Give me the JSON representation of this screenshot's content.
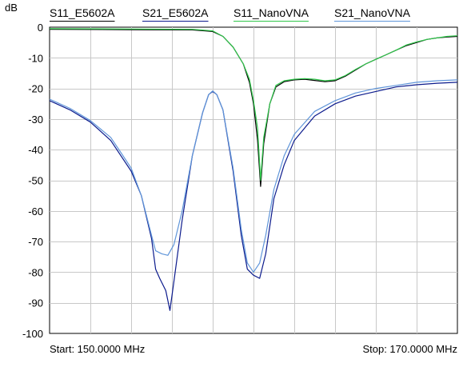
{
  "chart_data": {
    "type": "line",
    "ylabel": "dB",
    "xlabel": "",
    "title": "",
    "xlim": [
      150.0,
      170.0
    ],
    "ylim": [
      -100,
      0
    ],
    "x_start_label": "Start: 150.0000 MHz",
    "x_stop_label": "Stop: 170.0000 MHz",
    "yticks": [
      0,
      -10,
      -20,
      -30,
      -40,
      -50,
      -60,
      -70,
      -80,
      -90,
      -100
    ],
    "ytick_labels": [
      "0",
      "-10",
      "-20",
      "-30",
      "-40",
      "-50",
      "-60",
      "-70",
      "-80",
      "-90",
      "-100"
    ],
    "x_gridlines": [
      150,
      152,
      154,
      156,
      158,
      160,
      162,
      164,
      166,
      168,
      170
    ],
    "grid": true,
    "legend_position": "top",
    "series": [
      {
        "name": "S11_E5602A",
        "color": "#000000",
        "points": [
          [
            150.0,
            -0.7
          ],
          [
            154.0,
            -0.8
          ],
          [
            157.0,
            -0.9
          ],
          [
            158.0,
            -1.4
          ],
          [
            158.5,
            -3.0
          ],
          [
            159.0,
            -6.5
          ],
          [
            159.5,
            -12.0
          ],
          [
            159.8,
            -18.0
          ],
          [
            160.0,
            -25.0
          ],
          [
            160.2,
            -37.0
          ],
          [
            160.35,
            -52.0
          ],
          [
            160.5,
            -38.0
          ],
          [
            160.8,
            -25.0
          ],
          [
            161.1,
            -19.5
          ],
          [
            161.5,
            -17.8
          ],
          [
            162.0,
            -17.2
          ],
          [
            162.5,
            -17.0
          ],
          [
            163.0,
            -17.4
          ],
          [
            163.5,
            -17.8
          ],
          [
            164.0,
            -17.5
          ],
          [
            164.5,
            -16.0
          ],
          [
            165.0,
            -14.0
          ],
          [
            165.5,
            -12.0
          ],
          [
            166.0,
            -10.5
          ],
          [
            166.5,
            -9.0
          ],
          [
            167.0,
            -7.5
          ],
          [
            167.5,
            -6.0
          ],
          [
            168.0,
            -5.0
          ],
          [
            168.5,
            -4.0
          ],
          [
            169.0,
            -3.5
          ],
          [
            169.5,
            -3.2
          ],
          [
            170.0,
            -3.0
          ]
        ]
      },
      {
        "name": "S21_E5602A",
        "color": "#0b1a8c",
        "points": [
          [
            150.0,
            -24.0
          ],
          [
            151.0,
            -27.0
          ],
          [
            152.0,
            -31.0
          ],
          [
            153.0,
            -37.0
          ],
          [
            153.5,
            -42.0
          ],
          [
            154.0,
            -47.0
          ],
          [
            154.5,
            -55.0
          ],
          [
            155.0,
            -69.0
          ],
          [
            155.2,
            -79.0
          ],
          [
            155.4,
            -82.0
          ],
          [
            155.7,
            -86.0
          ],
          [
            155.9,
            -92.5
          ],
          [
            156.1,
            -83.0
          ],
          [
            156.5,
            -63.0
          ],
          [
            157.0,
            -42.0
          ],
          [
            157.5,
            -28.0
          ],
          [
            157.8,
            -22.0
          ],
          [
            158.0,
            -21.0
          ],
          [
            158.2,
            -22.0
          ],
          [
            158.5,
            -27.0
          ],
          [
            159.0,
            -47.0
          ],
          [
            159.4,
            -68.0
          ],
          [
            159.7,
            -79.0
          ],
          [
            160.0,
            -81.0
          ],
          [
            160.3,
            -82.0
          ],
          [
            160.6,
            -74.0
          ],
          [
            161.0,
            -56.0
          ],
          [
            161.5,
            -45.0
          ],
          [
            162.0,
            -37.0
          ],
          [
            163.0,
            -29.0
          ],
          [
            164.0,
            -25.0
          ],
          [
            165.0,
            -22.5
          ],
          [
            166.0,
            -21.0
          ],
          [
            167.0,
            -19.5
          ],
          [
            168.0,
            -18.8
          ],
          [
            169.0,
            -18.3
          ],
          [
            170.0,
            -18.0
          ]
        ]
      },
      {
        "name": "S11_NanoVNA",
        "color": "#2fc64a",
        "points": [
          [
            150.0,
            -0.5
          ],
          [
            154.0,
            -0.6
          ],
          [
            157.0,
            -0.7
          ],
          [
            158.0,
            -1.2
          ],
          [
            158.5,
            -3.0
          ],
          [
            159.0,
            -6.5
          ],
          [
            159.5,
            -12.0
          ],
          [
            159.8,
            -17.0
          ],
          [
            160.0,
            -24.0
          ],
          [
            160.2,
            -33.0
          ],
          [
            160.35,
            -50.0
          ],
          [
            160.5,
            -36.0
          ],
          [
            160.8,
            -25.0
          ],
          [
            161.1,
            -19.0
          ],
          [
            161.5,
            -17.5
          ],
          [
            162.0,
            -17.0
          ],
          [
            162.5,
            -16.8
          ],
          [
            163.0,
            -17.0
          ],
          [
            163.5,
            -17.5
          ],
          [
            164.0,
            -17.2
          ],
          [
            164.5,
            -15.8
          ],
          [
            165.0,
            -13.8
          ],
          [
            165.5,
            -12.0
          ],
          [
            166.0,
            -10.5
          ],
          [
            166.5,
            -9.0
          ],
          [
            167.0,
            -7.5
          ],
          [
            167.5,
            -5.8
          ],
          [
            168.0,
            -4.8
          ],
          [
            168.5,
            -4.0
          ],
          [
            169.0,
            -3.5
          ],
          [
            169.5,
            -3.0
          ],
          [
            170.0,
            -2.8
          ]
        ]
      },
      {
        "name": "S21_NanoVNA",
        "color": "#5f95d9",
        "points": [
          [
            150.0,
            -23.5
          ],
          [
            151.0,
            -26.5
          ],
          [
            152.0,
            -30.5
          ],
          [
            153.0,
            -36.0
          ],
          [
            153.5,
            -41.0
          ],
          [
            154.0,
            -46.0
          ],
          [
            154.5,
            -55.0
          ],
          [
            155.0,
            -68.0
          ],
          [
            155.2,
            -73.0
          ],
          [
            155.5,
            -74.0
          ],
          [
            155.8,
            -74.5
          ],
          [
            156.1,
            -71.0
          ],
          [
            156.5,
            -60.0
          ],
          [
            157.0,
            -42.0
          ],
          [
            157.5,
            -28.0
          ],
          [
            157.8,
            -22.0
          ],
          [
            158.0,
            -20.8
          ],
          [
            158.2,
            -22.0
          ],
          [
            158.5,
            -27.0
          ],
          [
            159.0,
            -46.0
          ],
          [
            159.4,
            -66.0
          ],
          [
            159.7,
            -77.0
          ],
          [
            160.0,
            -80.0
          ],
          [
            160.3,
            -77.0
          ],
          [
            160.6,
            -68.0
          ],
          [
            161.0,
            -53.0
          ],
          [
            161.5,
            -42.0
          ],
          [
            162.0,
            -35.0
          ],
          [
            163.0,
            -27.5
          ],
          [
            164.0,
            -24.0
          ],
          [
            165.0,
            -21.5
          ],
          [
            166.0,
            -20.0
          ],
          [
            167.0,
            -19.0
          ],
          [
            168.0,
            -18.0
          ],
          [
            169.0,
            -17.5
          ],
          [
            170.0,
            -17.2
          ]
        ]
      }
    ]
  }
}
